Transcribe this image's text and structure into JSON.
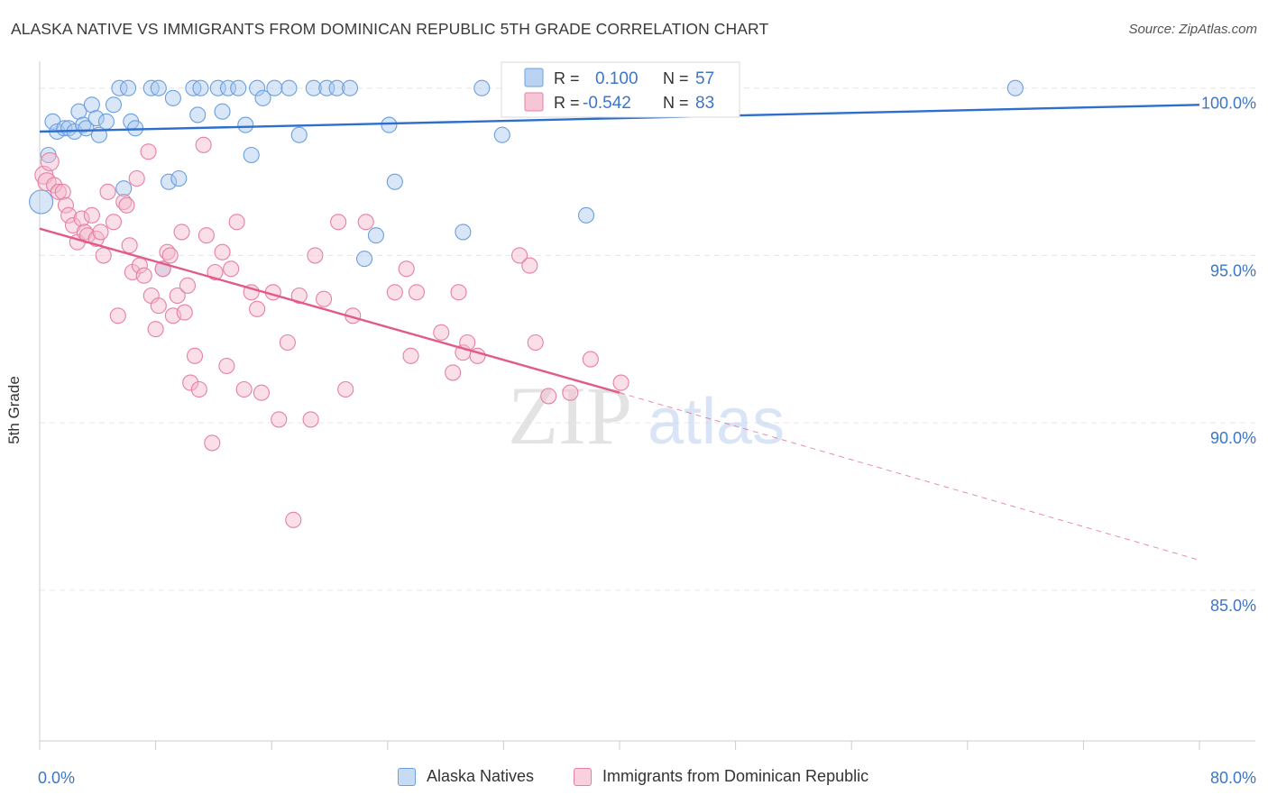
{
  "title": "ALASKA NATIVE VS IMMIGRANTS FROM DOMINICAN REPUBLIC 5TH GRADE CORRELATION CHART",
  "source": "Source: ZipAtlas.com",
  "watermark": {
    "zip": "ZIP",
    "atlas": "atlas"
  },
  "colors": {
    "blue": "#6a9fe0",
    "blue_fill": "#a9c8f0",
    "blue_line": "#2f6fcc",
    "pink": "#e77fa3",
    "pink_fill": "#f5b8cc",
    "pink_line": "#e05a8a",
    "axis_text": "#3d76c8",
    "grid": "#e6e6e6"
  },
  "legend_top": [
    {
      "r_label": "R =",
      "r_value": "0.100",
      "n_label": "N =",
      "n_value": "57"
    },
    {
      "r_label": "R =",
      "r_value": "-0.542",
      "n_label": "N =",
      "n_value": "83"
    }
  ],
  "chart_data": {
    "type": "scatter",
    "title": "ALASKA NATIVE VS IMMIGRANTS FROM DOMINICAN REPUBLIC 5TH GRADE CORRELATION CHART",
    "xlabel": "",
    "ylabel": "5th Grade",
    "xlim": [
      0,
      80
    ],
    "ylim": [
      80.5,
      100.8
    ],
    "x_tick_labels": [
      "0.0%",
      "80.0%"
    ],
    "y_ticks": [
      85,
      90,
      95,
      100
    ],
    "y_tick_labels": [
      "85.0%",
      "90.0%",
      "95.0%",
      "100.0%"
    ],
    "grid": "horizontal dashed",
    "legend_position": "top-center",
    "series": [
      {
        "name": "Alaska Natives",
        "color": "#6a9fe0",
        "trend": {
          "x": [
            0,
            80
          ],
          "y": [
            98.7,
            99.5
          ]
        },
        "points": [
          [
            0.1,
            96.6
          ],
          [
            0.6,
            98.0
          ],
          [
            0.9,
            99.0
          ],
          [
            1.2,
            98.7
          ],
          [
            1.7,
            98.8
          ],
          [
            2.0,
            98.8
          ],
          [
            2.4,
            98.7
          ],
          [
            2.7,
            99.3
          ],
          [
            3.0,
            98.9
          ],
          [
            3.2,
            98.8
          ],
          [
            3.6,
            99.5
          ],
          [
            3.9,
            99.1
          ],
          [
            4.1,
            98.6
          ],
          [
            4.6,
            99.0
          ],
          [
            5.1,
            99.5
          ],
          [
            5.5,
            100.0
          ],
          [
            5.8,
            97.0
          ],
          [
            6.1,
            100.0
          ],
          [
            6.3,
            99.0
          ],
          [
            6.6,
            98.8
          ],
          [
            7.7,
            100.0
          ],
          [
            8.2,
            100.0
          ],
          [
            8.5,
            94.6
          ],
          [
            8.9,
            97.2
          ],
          [
            9.2,
            99.7
          ],
          [
            9.6,
            97.3
          ],
          [
            10.6,
            100.0
          ],
          [
            10.9,
            99.2
          ],
          [
            11.1,
            100.0
          ],
          [
            12.3,
            100.0
          ],
          [
            12.6,
            99.3
          ],
          [
            13.0,
            100.0
          ],
          [
            13.7,
            100.0
          ],
          [
            14.2,
            98.9
          ],
          [
            14.6,
            98.0
          ],
          [
            15.0,
            100.0
          ],
          [
            15.4,
            99.7
          ],
          [
            16.2,
            100.0
          ],
          [
            17.2,
            100.0
          ],
          [
            17.9,
            98.6
          ],
          [
            18.9,
            100.0
          ],
          [
            19.8,
            100.0
          ],
          [
            20.5,
            100.0
          ],
          [
            21.4,
            100.0
          ],
          [
            22.4,
            94.9
          ],
          [
            23.2,
            95.6
          ],
          [
            24.1,
            98.9
          ],
          [
            24.5,
            97.2
          ],
          [
            29.2,
            95.7
          ],
          [
            30.5,
            100.0
          ],
          [
            31.9,
            98.6
          ],
          [
            36.9,
            100.0
          ],
          [
            37.7,
            100.0
          ],
          [
            37.4,
            99.4
          ],
          [
            39.1,
            100.0
          ],
          [
            37.7,
            96.2
          ],
          [
            67.3,
            100.0
          ]
        ]
      },
      {
        "name": "Immigrants from Dominican Republic",
        "color": "#e77fa3",
        "trend": {
          "x": [
            0,
            40
          ],
          "y": [
            95.8,
            90.9
          ]
        },
        "trend_extension": {
          "x": [
            40,
            80
          ],
          "y": [
            90.9,
            85.9
          ]
        },
        "points": [
          [
            0.3,
            97.4
          ],
          [
            0.5,
            97.2
          ],
          [
            0.7,
            97.8
          ],
          [
            1.0,
            97.1
          ],
          [
            1.3,
            96.9
          ],
          [
            1.6,
            96.9
          ],
          [
            1.8,
            96.5
          ],
          [
            2.0,
            96.2
          ],
          [
            2.3,
            95.9
          ],
          [
            2.6,
            95.4
          ],
          [
            2.9,
            96.1
          ],
          [
            3.1,
            95.7
          ],
          [
            3.3,
            95.6
          ],
          [
            3.6,
            96.2
          ],
          [
            3.9,
            95.5
          ],
          [
            4.2,
            95.7
          ],
          [
            4.4,
            95.0
          ],
          [
            4.7,
            96.9
          ],
          [
            5.1,
            96.0
          ],
          [
            5.4,
            93.2
          ],
          [
            5.8,
            96.6
          ],
          [
            6.0,
            96.5
          ],
          [
            6.2,
            95.3
          ],
          [
            6.4,
            94.5
          ],
          [
            6.7,
            97.3
          ],
          [
            6.9,
            94.7
          ],
          [
            7.2,
            94.4
          ],
          [
            7.5,
            98.1
          ],
          [
            7.7,
            93.8
          ],
          [
            8.0,
            92.8
          ],
          [
            8.2,
            93.5
          ],
          [
            8.5,
            94.6
          ],
          [
            8.8,
            95.1
          ],
          [
            9.0,
            95.0
          ],
          [
            9.2,
            93.2
          ],
          [
            9.5,
            93.8
          ],
          [
            9.8,
            95.7
          ],
          [
            10.0,
            93.3
          ],
          [
            10.2,
            94.1
          ],
          [
            10.4,
            91.2
          ],
          [
            10.7,
            92.0
          ],
          [
            11.0,
            91.0
          ],
          [
            11.3,
            98.3
          ],
          [
            11.5,
            95.6
          ],
          [
            11.9,
            89.4
          ],
          [
            12.1,
            94.5
          ],
          [
            12.6,
            95.1
          ],
          [
            12.9,
            91.7
          ],
          [
            13.2,
            94.6
          ],
          [
            13.6,
            96.0
          ],
          [
            14.1,
            91.0
          ],
          [
            14.6,
            93.9
          ],
          [
            15.0,
            93.4
          ],
          [
            15.3,
            90.9
          ],
          [
            16.1,
            93.9
          ],
          [
            16.5,
            90.1
          ],
          [
            17.1,
            92.4
          ],
          [
            17.5,
            87.1
          ],
          [
            17.9,
            93.8
          ],
          [
            18.7,
            90.1
          ],
          [
            19.0,
            95.0
          ],
          [
            19.6,
            93.7
          ],
          [
            20.6,
            96.0
          ],
          [
            21.1,
            91.0
          ],
          [
            21.6,
            93.2
          ],
          [
            22.5,
            96.0
          ],
          [
            24.5,
            93.9
          ],
          [
            25.3,
            94.6
          ],
          [
            25.6,
            92.0
          ],
          [
            26.0,
            93.9
          ],
          [
            27.7,
            92.7
          ],
          [
            28.5,
            91.5
          ],
          [
            28.9,
            93.9
          ],
          [
            29.2,
            92.1
          ],
          [
            29.5,
            92.4
          ],
          [
            30.2,
            92.0
          ],
          [
            33.1,
            95.0
          ],
          [
            33.8,
            94.7
          ],
          [
            34.2,
            92.4
          ],
          [
            35.1,
            90.8
          ],
          [
            36.6,
            90.9
          ],
          [
            38.0,
            91.9
          ],
          [
            40.1,
            91.2
          ]
        ]
      }
    ]
  },
  "legend_bottom": [
    {
      "label": "Alaska Natives"
    },
    {
      "label": "Immigrants from Dominican Republic"
    }
  ]
}
